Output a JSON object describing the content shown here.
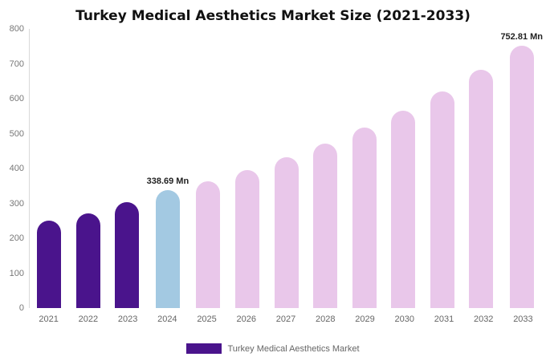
{
  "chart_data": {
    "type": "bar",
    "title": "Turkey Medical Aesthetics Market Size (2021-2033)",
    "xlabel": "",
    "ylabel": "",
    "ylim": [
      0,
      800
    ],
    "yticks": [
      0,
      100,
      200,
      300,
      400,
      500,
      600,
      700,
      800
    ],
    "grid": false,
    "legend_position": "bottom",
    "categories": [
      "2021",
      "2022",
      "2023",
      "2024",
      "2025",
      "2026",
      "2027",
      "2028",
      "2029",
      "2030",
      "2031",
      "2032",
      "2033"
    ],
    "values": [
      250,
      272,
      303,
      338.69,
      363,
      395,
      432,
      472,
      518,
      566,
      620,
      683,
      752.81
    ],
    "colors": [
      "#4A148C",
      "#4A148C",
      "#4A148C",
      "#A3C9E2",
      "#E9C7EA",
      "#E9C7EA",
      "#E9C7EA",
      "#E9C7EA",
      "#E9C7EA",
      "#E9C7EA",
      "#E9C7EA",
      "#E9C7EA",
      "#E9C7EA"
    ],
    "annotations": [
      {
        "category": "2024",
        "text": "338.69 Mn"
      },
      {
        "category": "2033",
        "text": "752.81 Mn"
      }
    ]
  },
  "legend": {
    "label": "Turkey Medical Aesthetics Market",
    "swatch_color": "#4A148C"
  }
}
